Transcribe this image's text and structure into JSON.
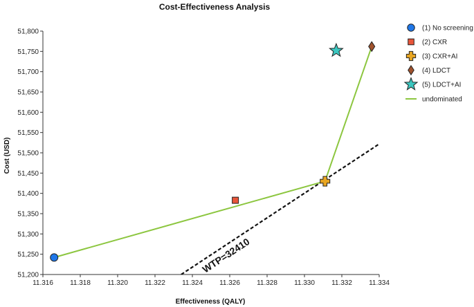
{
  "chart_data": {
    "type": "scatter",
    "title": "Cost-Effectiveness Analysis",
    "xlabel": "Effectiveness (QALY)",
    "ylabel": "Cost (USD)",
    "xlim": [
      11.316,
      11.334
    ],
    "ylim": [
      51200,
      51800
    ],
    "x_ticks": [
      "11.316",
      "11.318",
      "11.320",
      "11.322",
      "11.324",
      "11.326",
      "11.328",
      "11.330",
      "11.332",
      "11.334"
    ],
    "y_ticks": [
      "51,200",
      "51,250",
      "51,300",
      "51,350",
      "51,400",
      "51,450",
      "51,500",
      "51,550",
      "51,600",
      "51,650",
      "51,700",
      "51,750",
      "51,800"
    ],
    "grid": false,
    "legend_position": "right",
    "points": [
      {
        "name": "(1) No screening",
        "x": 11.3166,
        "y": 51242,
        "marker": "circle",
        "color": "#1f77e8"
      },
      {
        "name": "(2) CXR",
        "x": 11.3263,
        "y": 51383,
        "marker": "square",
        "color": "#e8553a"
      },
      {
        "name": "(3) CXR+AI",
        "x": 11.3311,
        "y": 51430,
        "marker": "plus",
        "color": "#e8a623"
      },
      {
        "name": "(4) LDCT",
        "x": 11.3336,
        "y": 51762,
        "marker": "diamond",
        "color": "#a0522d"
      },
      {
        "name": "(5) LDCT+AI",
        "x": 11.3317,
        "y": 51752,
        "marker": "star",
        "color": "#3cc7c0"
      }
    ],
    "frontier": {
      "name": "undominated",
      "color": "#8cc63f",
      "x": [
        11.3166,
        11.3311,
        11.3336
      ],
      "y": [
        51242,
        51430,
        51762
      ]
    },
    "wtp_line": {
      "label": "WTP=32410",
      "x": [
        11.3234,
        11.3344
      ],
      "y": [
        51200,
        51534
      ]
    }
  }
}
